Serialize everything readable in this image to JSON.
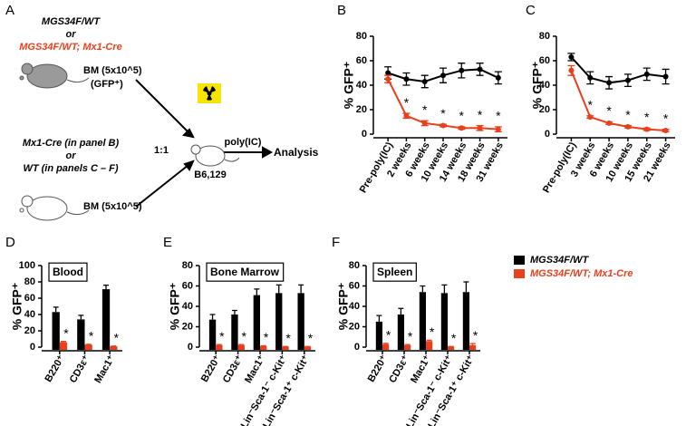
{
  "diagram": {
    "label": "A",
    "group1_line1": "MGS34F/WT",
    "group1_or": "or",
    "group1_line2": "MGS34F/WT; Mx1-Cre",
    "bm1": "BM (5x10^5)",
    "bm1_note": "(GFP⁺)",
    "group2_line1": "Mx1-Cre (in panel B)",
    "group2_or": "or",
    "group2_line2": "WT (in panels C – F)",
    "bm2": "BM (5x10^5)",
    "ratio": "1:1",
    "recipient": "B6,129",
    "treatment": "poly(IC)",
    "outcome": "Analysis"
  },
  "chart_data": [
    {
      "type": "line",
      "label": "B",
      "y_label": "% GFP⁺",
      "categories": [
        "Pre-poly(IC)",
        "2 weeks",
        "6 weeks",
        "10 weeks",
        "14 weeks",
        "18 weeks",
        "31 weeks"
      ],
      "ylim": [
        0,
        80
      ],
      "yticks": [
        0,
        20,
        40,
        60,
        80
      ],
      "series": [
        {
          "color": "#000000",
          "values": [
            50,
            45,
            43,
            48,
            52,
            53,
            46
          ],
          "errors": [
            5,
            5,
            5,
            6,
            6,
            5,
            5
          ]
        },
        {
          "color": "#e8401c",
          "values": [
            45,
            15,
            9,
            7,
            5,
            5,
            4
          ],
          "errors": [
            3,
            2,
            2,
            1,
            1,
            2,
            2
          ],
          "markers": [
            null,
            "*",
            "*",
            "*",
            "*",
            "*",
            "*"
          ]
        }
      ]
    },
    {
      "type": "line",
      "label": "C",
      "y_label": "% GFP⁺",
      "categories": [
        "Pre-poly(IC)",
        "3 weeks",
        "6 weeks",
        "10 weeks",
        "15 weeks",
        "21 weeks"
      ],
      "ylim": [
        0,
        80
      ],
      "yticks": [
        0,
        20,
        40,
        60,
        80
      ],
      "series": [
        {
          "color": "#000000",
          "values": [
            63,
            46,
            42,
            44,
            49,
            47
          ],
          "errors": [
            3,
            5,
            5,
            5,
            5,
            6
          ]
        },
        {
          "color": "#e8401c",
          "values": [
            52,
            14,
            9,
            6,
            4,
            3
          ],
          "errors": [
            4,
            1,
            1,
            1,
            1,
            1
          ],
          "markers": [
            null,
            "*",
            "*",
            "*",
            "*",
            "*"
          ]
        }
      ]
    },
    {
      "type": "bar",
      "label": "D",
      "y_label": "% GFP⁺",
      "inset_title": "Blood",
      "categories": [
        "B220⁺",
        "CD3ε⁺",
        "Mac1⁺"
      ],
      "ylim": [
        0,
        100
      ],
      "yticks": [
        0,
        20,
        40,
        60,
        80,
        100
      ],
      "series": [
        {
          "color": "#000000",
          "values": [
            43,
            34,
            71
          ],
          "errors": [
            6,
            5,
            5
          ]
        },
        {
          "color": "#e8401c",
          "values": [
            6,
            3,
            1
          ],
          "errors": [
            1,
            0.5,
            0.3
          ],
          "markers": [
            "*",
            "*",
            "*"
          ]
        }
      ]
    },
    {
      "type": "bar",
      "label": "E",
      "y_label": "% GFP⁺",
      "inset_title": "Bone Marrow",
      "categories": [
        "B220⁺",
        "CD3ε⁺",
        "Mac1⁺",
        "Lin⁻Sca-1⁻ c-Kit⁺",
        "Lin⁻Sca-1⁺ c-Kit⁺"
      ],
      "ylim": [
        0,
        80
      ],
      "yticks": [
        0,
        20,
        40,
        60,
        80
      ],
      "series": [
        {
          "color": "#000000",
          "values": [
            27,
            32,
            51,
            53,
            53
          ],
          "errors": [
            5,
            4,
            6,
            8,
            8
          ]
        },
        {
          "color": "#e8401c",
          "values": [
            2,
            2,
            1,
            0.5,
            0.5
          ],
          "errors": [
            0.5,
            0.5,
            0.3,
            0.2,
            0.2
          ],
          "markers": [
            "*",
            "*",
            "*",
            "*",
            "*"
          ]
        }
      ]
    },
    {
      "type": "bar",
      "label": "F",
      "y_label": "% GFP⁺",
      "inset_title": "Spleen",
      "legend": "right",
      "categories": [
        "B220⁺",
        "CD3ε⁺",
        "Mac1⁺",
        "Lin⁻Sca-1⁻ c-Kit⁺",
        "Lin⁻Sca-1⁺ c-Kit⁺"
      ],
      "ylim": [
        0,
        80
      ],
      "yticks": [
        0,
        20,
        40,
        60,
        80
      ],
      "series": [
        {
          "name": "MGS34F/WT",
          "color": "#000000",
          "values": [
            25,
            32,
            54,
            53,
            54
          ],
          "errors": [
            6,
            6,
            6,
            8,
            10
          ]
        },
        {
          "name": "MGS34F/WT; Mx1-Cre",
          "color": "#e8401c",
          "values": [
            3,
            2,
            6,
            0.5,
            2
          ],
          "errors": [
            0.8,
            0.5,
            0.8,
            0.2,
            1.5
          ],
          "markers": [
            "*",
            "*",
            "*",
            "*",
            "*"
          ]
        }
      ]
    }
  ]
}
